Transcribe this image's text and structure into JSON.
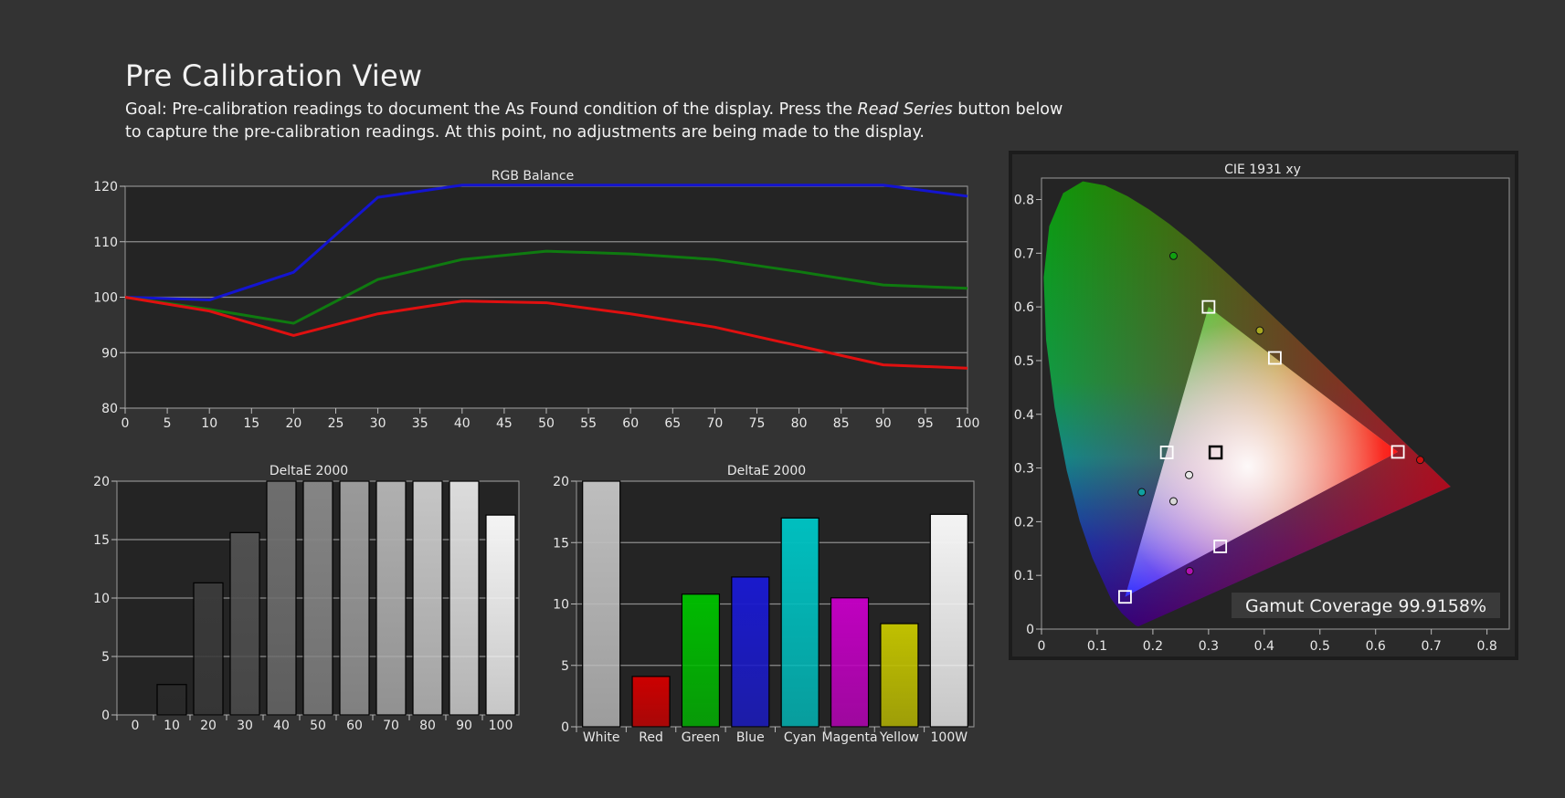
{
  "header": {
    "title": "Pre Calibration View",
    "goal_prefix": "Goal: Pre-calibration readings to document the As Found condition of the display. Press the ",
    "goal_emphasis": "Read Series",
    "goal_suffix": " button below to capture the pre-calibration readings. At this point, no adjustments are being made to the display."
  },
  "colors": {
    "background": "#333333",
    "plot_background": "#242424",
    "red": "#e01010",
    "green": "#0f7a10",
    "blue": "#1414d0"
  },
  "chart_data": [
    {
      "type": "line",
      "title": "RGB Balance",
      "xlabel": "",
      "ylabel": "",
      "x": [
        0,
        10,
        20,
        30,
        40,
        50,
        60,
        70,
        80,
        90,
        100
      ],
      "x_ticks": [
        0,
        5,
        10,
        15,
        20,
        25,
        30,
        35,
        40,
        45,
        50,
        55,
        60,
        65,
        70,
        75,
        80,
        85,
        90,
        95,
        100
      ],
      "y_ticks": [
        80,
        90,
        100,
        110,
        120
      ],
      "xlim": [
        0,
        100
      ],
      "ylim": [
        80,
        120
      ],
      "grid": true,
      "series": [
        {
          "color": "#1414d0",
          "values": [
            100,
            99.5,
            104.5,
            118,
            120.2,
            120.5,
            120.5,
            120.5,
            120.5,
            120.2,
            118.2
          ]
        },
        {
          "color": "#0f7a10",
          "values": [
            100,
            97.8,
            95.3,
            103.2,
            106.8,
            108.3,
            107.8,
            106.8,
            104.6,
            102.2,
            101.6
          ]
        },
        {
          "color": "#e01010",
          "values": [
            100,
            97.5,
            93.1,
            97,
            99.3,
            99,
            97,
            94.6,
            91.2,
            87.8,
            87.2
          ]
        }
      ]
    },
    {
      "type": "bar",
      "title": "DeltaE 2000",
      "categories": [
        "0",
        "10",
        "20",
        "30",
        "40",
        "50",
        "60",
        "70",
        "80",
        "90",
        "100"
      ],
      "values": [
        0,
        2.6,
        11.3,
        15.6,
        20,
        20,
        20,
        20,
        20,
        20,
        17.1
      ],
      "bar_colors": [
        "#1a1a1a",
        "#2a2a2a",
        "#3a3a3a",
        "#505050",
        "#6e6e6e",
        "#858585",
        "#9a9a9a",
        "#b0b0b0",
        "#c6c6c6",
        "#dcdcdc",
        "#f4f4f4"
      ],
      "y_ticks": [
        0,
        5,
        10,
        15,
        20
      ],
      "ylim": [
        0,
        20
      ],
      "grid": true
    },
    {
      "type": "bar",
      "title": "DeltaE 2000",
      "categories": [
        "White",
        "Red",
        "Green",
        "Blue",
        "Cyan",
        "Magenta",
        "Yellow",
        "100W"
      ],
      "values": [
        20,
        4.1,
        10.8,
        12.2,
        17,
        10.5,
        8.4,
        17.3
      ],
      "bar_colors": [
        "#bebebe",
        "#cc0000",
        "#00bb00",
        "#1a1acc",
        "#00bfbf",
        "#c000c0",
        "#c0c000",
        "#f4f4f4"
      ],
      "y_ticks": [
        0,
        5,
        10,
        15,
        20
      ],
      "ylim": [
        0,
        20
      ],
      "grid": true
    },
    {
      "type": "scatter",
      "title": "CIE 1931 xy",
      "x_ticks": [
        0,
        0.1,
        0.2,
        0.3,
        0.4,
        0.5,
        0.6,
        0.7,
        0.8
      ],
      "y_ticks": [
        0,
        0.1,
        0.2,
        0.3,
        0.4,
        0.5,
        0.6,
        0.7,
        0.8
      ],
      "xlim": [
        0,
        0.84
      ],
      "ylim": [
        0,
        0.84
      ],
      "gamut_coverage": "Gamut Coverage 99.9158%",
      "targets": [
        {
          "x": 0.64,
          "y": 0.33
        },
        {
          "x": 0.3,
          "y": 0.6
        },
        {
          "x": 0.15,
          "y": 0.06
        },
        {
          "x": 0.225,
          "y": 0.329
        },
        {
          "x": 0.321,
          "y": 0.154
        },
        {
          "x": 0.419,
          "y": 0.505
        },
        {
          "x": 0.3127,
          "y": 0.329
        }
      ],
      "measured": [
        {
          "x": 0.68,
          "y": 0.315,
          "color": "#cc1010"
        },
        {
          "x": 0.237,
          "y": 0.695,
          "color": "#10a010"
        },
        {
          "x": 0.392,
          "y": 0.556,
          "color": "#a8a820"
        },
        {
          "x": 0.18,
          "y": 0.255,
          "color": "#10a0a0"
        },
        {
          "x": 0.266,
          "y": 0.108,
          "color": "#b010b0"
        },
        {
          "x": 0.265,
          "y": 0.287,
          "color": "#e8e8e8"
        },
        {
          "x": 0.237,
          "y": 0.238,
          "color": "#d8d8d8"
        }
      ]
    }
  ]
}
